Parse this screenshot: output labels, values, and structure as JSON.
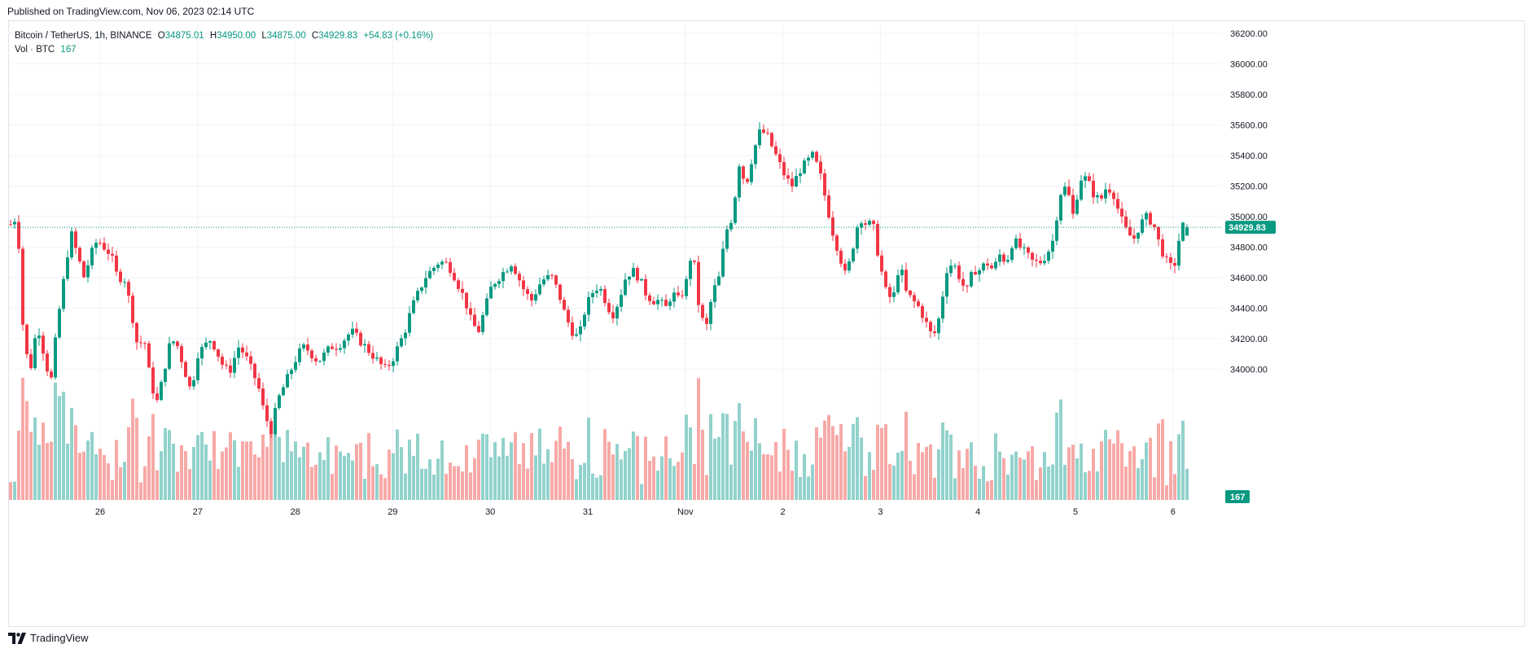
{
  "published": "Published on TradingView.com, Nov 06, 2023 02:14 UTC",
  "legend": {
    "symbol": "Bitcoin / TetherUS, 1h, BINANCE",
    "open_label": "O",
    "open": "34875.01",
    "high_label": "H",
    "high": "34950.00",
    "low_label": "L",
    "low": "34875.00",
    "close_label": "C",
    "close": "34929.83",
    "change": "+54.83 (+0.16%)",
    "vol_label": "Vol · BTC",
    "vol": "167"
  },
  "brand": "TradingView",
  "colors": {
    "up": "#089981",
    "down": "#f23645",
    "up_vol": "#92d2cc",
    "down_vol": "#f7a9a7",
    "grid": "#f0f3fa",
    "price_line": "#089981"
  },
  "chart_data": {
    "type": "candlestick",
    "title": "Bitcoin / TetherUS, 1h, BINANCE",
    "y_ticks": [
      34000,
      34200,
      34400,
      34600,
      34800,
      35000,
      35200,
      35400,
      35600,
      35800,
      36000,
      36200
    ],
    "ylim": [
      33200,
      36200
    ],
    "x_ticks": [
      "26",
      "27",
      "28",
      "29",
      "30",
      "31",
      "Nov",
      "2",
      "3",
      "4",
      "5",
      "6"
    ],
    "last_price": "34929.83",
    "last_volume": "167",
    "volume_max": 1100,
    "daily_path": [
      [
        35000,
        34150,
        34010,
        34300,
        34100,
        33900,
        34300,
        34600,
        34900,
        34750,
        34600,
        34750,
        34850,
        34800,
        34750,
        34600
      ],
      [
        34600,
        34400,
        34150,
        34200,
        33900,
        33780,
        34000,
        34200,
        34150,
        34000,
        33850,
        34100,
        34150,
        34200,
        34100,
        34000
      ],
      [
        34000,
        34150,
        34100,
        34000,
        33900,
        33700,
        33600,
        33800,
        33900,
        34000,
        34100,
        34150,
        34100,
        34050,
        34100,
        34150
      ],
      [
        34150,
        34200,
        34250,
        34200,
        34150,
        34100,
        34050,
        34000,
        34050,
        34150,
        34250,
        34400,
        34500,
        34600,
        34650,
        34700
      ],
      [
        34700,
        34650,
        34550,
        34450,
        34300,
        34250,
        34400,
        34550,
        34600,
        34650,
        34700,
        34600,
        34500,
        34450,
        34550,
        34600
      ],
      [
        34600,
        34500,
        34350,
        34250,
        34200,
        34400,
        34500,
        34550,
        34450,
        34350,
        34450,
        34600,
        34650,
        34600,
        34500,
        34450
      ],
      [
        34450,
        34400,
        34500,
        34450,
        34550,
        34800,
        34400,
        34250,
        34500,
        34600,
        34900,
        35000,
        35350,
        35200,
        35400,
        35550
      ],
      [
        35550,
        35450,
        35350,
        35250,
        35200,
        35300,
        35350,
        35400,
        35300,
        35100,
        34900,
        34750,
        34600,
        34800,
        35000,
        34950
      ],
      [
        34950,
        34700,
        34500,
        34450,
        34700,
        34500,
        34450,
        34400,
        34300,
        34200,
        34350,
        34650,
        34700,
        34600,
        34500,
        34650
      ],
      [
        34650,
        34700,
        34650,
        34750,
        34700,
        34850,
        34800,
        34750,
        34700,
        34700,
        34750,
        34850,
        35150,
        35200,
        35000,
        35250
      ],
      [
        35250,
        35150,
        35100,
        35200,
        35150,
        35000,
        34900,
        34850,
        34950,
        35000,
        34950,
        34800,
        34700,
        34650,
        34900,
        35000
      ]
    ]
  }
}
